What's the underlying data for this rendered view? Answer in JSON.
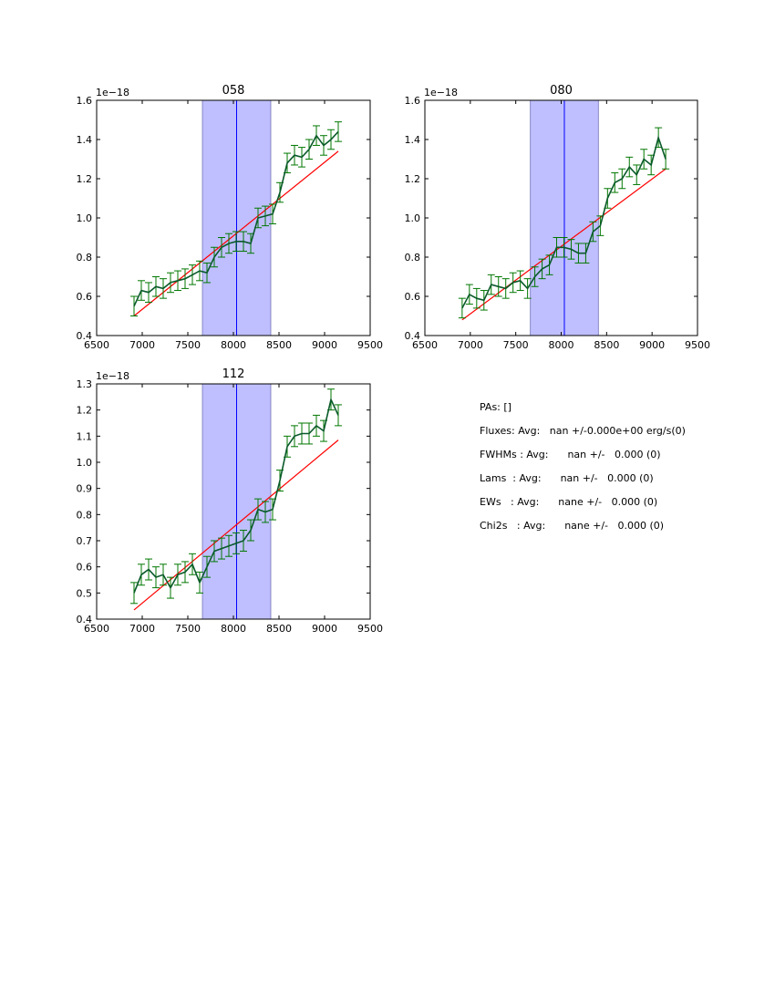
{
  "colors": {
    "data": "#007700",
    "data_line": "#0a5a2a",
    "fit": "#ff0000",
    "shade": "#8080ff",
    "marker": "#0000ff"
  },
  "chart_data": [
    {
      "type": "line",
      "title": "058",
      "offset_label": "1e−18",
      "xlim": [
        6500,
        9500
      ],
      "ylim": [
        0.4,
        1.6
      ],
      "xticks": [
        "6500",
        "7000",
        "7500",
        "8000",
        "8500",
        "9000",
        "9500"
      ],
      "yticks": [
        "0.4",
        "0.6",
        "0.8",
        "1.0",
        "1.2",
        "1.4",
        "1.6"
      ],
      "shade_range": [
        7660,
        8410
      ],
      "vline": 8035,
      "fit": {
        "x": [
          6910,
          9150
        ],
        "y": [
          0.5,
          1.34
        ]
      },
      "x": [
        6910,
        6990,
        7070,
        7150,
        7230,
        7310,
        7390,
        7470,
        7550,
        7630,
        7710,
        7790,
        7870,
        7950,
        8030,
        8110,
        8190,
        8270,
        8350,
        8430,
        8510,
        8590,
        8670,
        8750,
        8830,
        8910,
        8990,
        9070,
        9150
      ],
      "y": [
        0.55,
        0.63,
        0.62,
        0.65,
        0.64,
        0.67,
        0.68,
        0.69,
        0.71,
        0.73,
        0.72,
        0.8,
        0.85,
        0.87,
        0.88,
        0.88,
        0.87,
        1.0,
        1.01,
        1.02,
        1.13,
        1.28,
        1.32,
        1.31,
        1.35,
        1.42,
        1.37,
        1.4,
        1.44
      ],
      "err": 0.05
    },
    {
      "type": "line",
      "title": "080",
      "offset_label": "1e−18",
      "xlim": [
        6500,
        9500
      ],
      "ylim": [
        0.4,
        1.6
      ],
      "xticks": [
        "6500",
        "7000",
        "7500",
        "8000",
        "8500",
        "9000",
        "9500"
      ],
      "yticks": [
        "0.4",
        "0.6",
        "0.8",
        "1.0",
        "1.2",
        "1.4",
        "1.6"
      ],
      "shade_range": [
        7660,
        8410
      ],
      "vline": 8035,
      "fit": {
        "x": [
          6910,
          9150
        ],
        "y": [
          0.48,
          1.25
        ]
      },
      "x": [
        6910,
        6990,
        7070,
        7150,
        7230,
        7310,
        7390,
        7470,
        7550,
        7630,
        7710,
        7790,
        7870,
        7950,
        8030,
        8110,
        8190,
        8270,
        8350,
        8430,
        8510,
        8590,
        8670,
        8750,
        8830,
        8910,
        8990,
        9070,
        9150
      ],
      "y": [
        0.54,
        0.61,
        0.59,
        0.58,
        0.66,
        0.65,
        0.64,
        0.67,
        0.68,
        0.64,
        0.7,
        0.74,
        0.76,
        0.85,
        0.85,
        0.84,
        0.82,
        0.82,
        0.93,
        0.96,
        1.1,
        1.18,
        1.2,
        1.26,
        1.22,
        1.3,
        1.27,
        1.41,
        1.3
      ],
      "err": 0.05
    },
    {
      "type": "line",
      "title": "112",
      "offset_label": "1e−18",
      "xlim": [
        6500,
        9500
      ],
      "ylim": [
        0.4,
        1.3
      ],
      "xticks": [
        "6500",
        "7000",
        "7500",
        "8000",
        "8500",
        "9000",
        "9500"
      ],
      "yticks": [
        "0.4",
        "0.5",
        "0.6",
        "0.7",
        "0.8",
        "0.9",
        "1.0",
        "1.1",
        "1.2",
        "1.3"
      ],
      "shade_range": [
        7660,
        8410
      ],
      "vline": 8035,
      "fit": {
        "x": [
          6910,
          9150
        ],
        "y": [
          0.435,
          1.085
        ]
      },
      "x": [
        6910,
        6990,
        7070,
        7150,
        7230,
        7310,
        7390,
        7470,
        7550,
        7630,
        7710,
        7790,
        7870,
        7950,
        8030,
        8110,
        8190,
        8270,
        8350,
        8430,
        8510,
        8590,
        8670,
        8750,
        8830,
        8910,
        8990,
        9070,
        9150
      ],
      "y": [
        0.5,
        0.57,
        0.59,
        0.56,
        0.57,
        0.52,
        0.57,
        0.58,
        0.61,
        0.54,
        0.6,
        0.66,
        0.67,
        0.68,
        0.69,
        0.7,
        0.74,
        0.82,
        0.81,
        0.82,
        0.93,
        1.06,
        1.1,
        1.11,
        1.11,
        1.14,
        1.12,
        1.24,
        1.18
      ],
      "err": 0.04
    }
  ],
  "stats": {
    "pas": "PAs: []",
    "fluxes": "Fluxes: Avg:   nan +/-0.000e+00 erg/s(0)",
    "fwhms": "FWHMs : Avg:      nan +/-   0.000 (0)",
    "lams": "Lams  : Avg:      nan +/-   0.000 (0)",
    "ews": "EWs   : Avg:      nane +/-   0.000 (0)",
    "chi2s": "Chi2s   : Avg:      nane +/-   0.000 (0)"
  }
}
